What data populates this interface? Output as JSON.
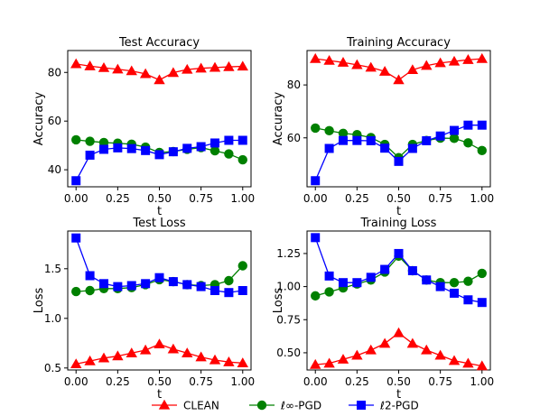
{
  "chart_data": [
    {
      "type": "line",
      "title": "Test Accuracy",
      "xlabel": "t",
      "ylabel": "Accuracy",
      "xlim": [
        -0.05,
        1.05
      ],
      "ylim": [
        33,
        89
      ],
      "x": [
        0.0,
        0.0833,
        0.1667,
        0.25,
        0.3333,
        0.4167,
        0.5,
        0.5833,
        0.6667,
        0.75,
        0.8333,
        0.9167,
        1.0
      ],
      "xticks": [
        "0.00",
        "0.25",
        "0.50",
        "0.75",
        "1.00"
      ],
      "xtick_values": [
        0,
        0.25,
        0.5,
        0.75,
        1.0
      ],
      "yticks": [
        "40",
        "60",
        "80"
      ],
      "ytick_values": [
        40,
        60,
        80
      ],
      "series": [
        {
          "name": "CLEAN",
          "color": "#ff0000",
          "marker": "triangle",
          "values": [
            83.5,
            82.6,
            81.9,
            81.3,
            80.6,
            79.4,
            76.9,
            79.9,
            81.2,
            81.7,
            82.0,
            82.3,
            82.5
          ]
        },
        {
          "name": "ℓ∞-PGD",
          "color": "#008000",
          "marker": "circle",
          "values": [
            52.3,
            51.7,
            51.2,
            50.9,
            50.5,
            49.3,
            47.1,
            47.5,
            48.4,
            49.1,
            47.8,
            46.5,
            44.1
          ]
        },
        {
          "name": "ℓ2-PGD",
          "color": "#0000ff",
          "marker": "square",
          "values": [
            35.5,
            46.0,
            48.4,
            49.0,
            48.7,
            47.9,
            46.2,
            47.4,
            48.8,
            49.5,
            51.0,
            52.1,
            52.1
          ]
        }
      ]
    },
    {
      "type": "line",
      "title": "Training Accuracy",
      "xlabel": "t",
      "ylabel": "Accuracy",
      "xlim": [
        -0.05,
        1.05
      ],
      "ylim": [
        41.5,
        93
      ],
      "x": [
        0.0,
        0.0833,
        0.1667,
        0.25,
        0.3333,
        0.4167,
        0.5,
        0.5833,
        0.6667,
        0.75,
        0.8333,
        0.9167,
        1.0
      ],
      "xticks": [
        "0.00",
        "0.25",
        "0.50",
        "0.75",
        "1.00"
      ],
      "xtick_values": [
        0,
        0.25,
        0.5,
        0.75,
        1.0
      ],
      "yticks": [
        "60",
        "80"
      ],
      "ytick_values": [
        60,
        80
      ],
      "series": [
        {
          "name": "CLEAN",
          "color": "#ff0000",
          "marker": "triangle",
          "values": [
            89.9,
            89.2,
            88.5,
            87.6,
            86.6,
            85.1,
            81.9,
            85.7,
            87.3,
            88.3,
            88.9,
            89.5,
            89.9
          ]
        },
        {
          "name": "ℓ∞-PGD",
          "color": "#008000",
          "marker": "circle",
          "values": [
            63.7,
            62.7,
            61.7,
            61.2,
            60.1,
            57.5,
            52.5,
            57.5,
            59.0,
            59.9,
            59.8,
            58.1,
            55.2
          ]
        },
        {
          "name": "ℓ2-PGD",
          "color": "#0000ff",
          "marker": "square",
          "values": [
            43.8,
            56.0,
            59.0,
            59.0,
            58.9,
            56.1,
            51.1,
            56.0,
            58.9,
            60.7,
            62.8,
            64.8,
            64.8
          ]
        }
      ]
    },
    {
      "type": "line",
      "title": "Test Loss",
      "xlabel": "t",
      "ylabel": "Loss",
      "xlim": [
        -0.05,
        1.05
      ],
      "ylim": [
        0.48,
        1.88
      ],
      "x": [
        0.0,
        0.0833,
        0.1667,
        0.25,
        0.3333,
        0.4167,
        0.5,
        0.5833,
        0.6667,
        0.75,
        0.8333,
        0.9167,
        1.0
      ],
      "xticks": [
        "0.00",
        "0.25",
        "0.50",
        "0.75",
        "1.00"
      ],
      "xtick_values": [
        0,
        0.25,
        0.5,
        0.75,
        1.0
      ],
      "yticks": [
        "0.5",
        "1.0",
        "1.5"
      ],
      "ytick_values": [
        0.5,
        1.0,
        1.5
      ],
      "series": [
        {
          "name": "CLEAN",
          "color": "#ff0000",
          "marker": "triangle",
          "values": [
            0.54,
            0.57,
            0.6,
            0.62,
            0.65,
            0.68,
            0.74,
            0.69,
            0.65,
            0.61,
            0.58,
            0.56,
            0.55
          ]
        },
        {
          "name": "ℓ∞-PGD",
          "color": "#008000",
          "marker": "circle",
          "values": [
            1.27,
            1.28,
            1.3,
            1.3,
            1.31,
            1.34,
            1.39,
            1.37,
            1.34,
            1.33,
            1.34,
            1.38,
            1.53
          ]
        },
        {
          "name": "ℓ2-PGD",
          "color": "#0000ff",
          "marker": "square",
          "values": [
            1.81,
            1.43,
            1.35,
            1.32,
            1.33,
            1.35,
            1.41,
            1.37,
            1.34,
            1.32,
            1.28,
            1.26,
            1.28
          ]
        }
      ]
    },
    {
      "type": "line",
      "title": "Training Loss",
      "xlabel": "t",
      "ylabel": "Loss",
      "xlim": [
        -0.05,
        1.05
      ],
      "ylim": [
        0.37,
        1.42
      ],
      "x": [
        0.0,
        0.0833,
        0.1667,
        0.25,
        0.3333,
        0.4167,
        0.5,
        0.5833,
        0.6667,
        0.75,
        0.8333,
        0.9167,
        1.0
      ],
      "xticks": [
        "0.00",
        "0.25",
        "0.50",
        "0.75",
        "1.00"
      ],
      "xtick_values": [
        0,
        0.25,
        0.5,
        0.75,
        1.0
      ],
      "yticks": [
        "0.50",
        "0.75",
        "1.00",
        "1.25"
      ],
      "ytick_values": [
        0.5,
        0.75,
        1.0,
        1.25
      ],
      "series": [
        {
          "name": "CLEAN",
          "color": "#ff0000",
          "marker": "triangle",
          "values": [
            0.41,
            0.42,
            0.45,
            0.48,
            0.52,
            0.57,
            0.65,
            0.57,
            0.52,
            0.48,
            0.44,
            0.42,
            0.4
          ]
        },
        {
          "name": "ℓ∞-PGD",
          "color": "#008000",
          "marker": "circle",
          "values": [
            0.93,
            0.96,
            0.99,
            1.02,
            1.05,
            1.11,
            1.23,
            1.12,
            1.05,
            1.03,
            1.03,
            1.04,
            1.1
          ]
        },
        {
          "name": "ℓ2-PGD",
          "color": "#0000ff",
          "marker": "square",
          "values": [
            1.37,
            1.08,
            1.03,
            1.03,
            1.07,
            1.13,
            1.25,
            1.12,
            1.05,
            1.0,
            0.95,
            0.9,
            0.88
          ]
        }
      ]
    }
  ],
  "legend": {
    "placement": "bottom-center",
    "entries": [
      {
        "label": "CLEAN",
        "color": "#ff0000",
        "marker": "triangle"
      },
      {
        "label": "ℓ∞-PGD",
        "color": "#008000",
        "marker": "circle"
      },
      {
        "label": "ℓ2-PGD",
        "color": "#0000ff",
        "marker": "square"
      }
    ]
  }
}
